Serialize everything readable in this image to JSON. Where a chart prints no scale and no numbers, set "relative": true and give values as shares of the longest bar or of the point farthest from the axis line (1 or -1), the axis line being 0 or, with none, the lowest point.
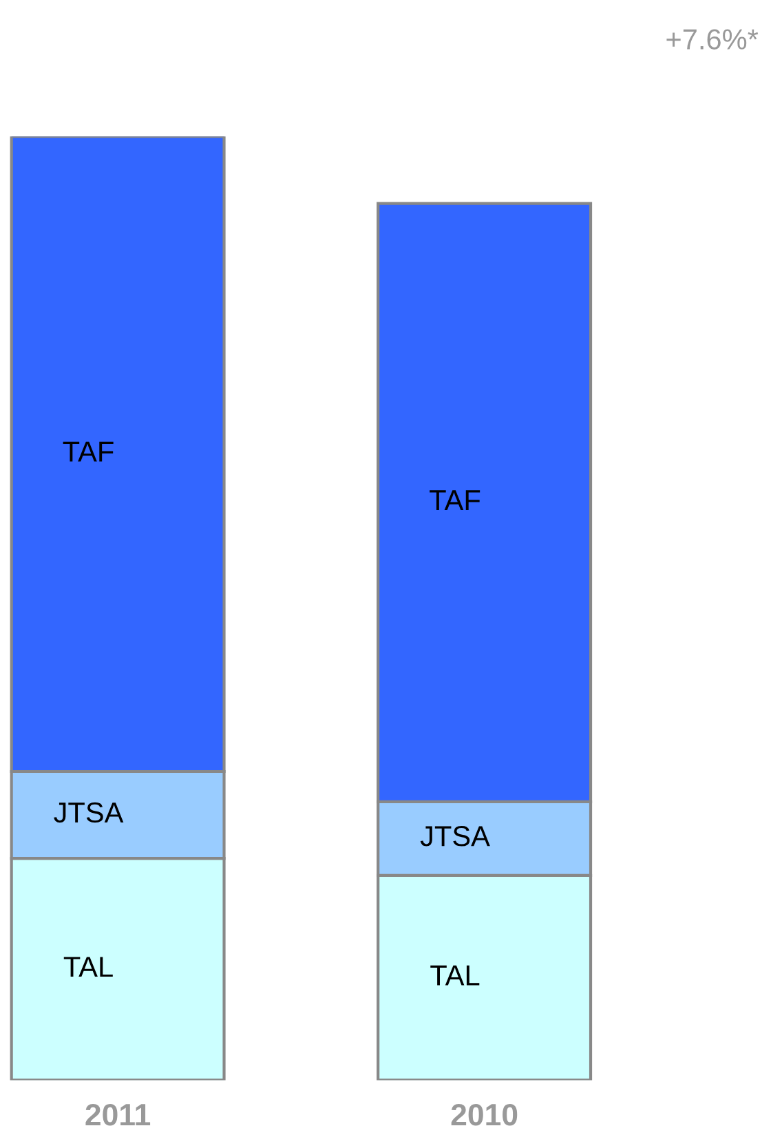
{
  "chart_data": {
    "type": "bar",
    "stacked": true,
    "relative": true,
    "categories": [
      "2011",
      "2010"
    ],
    "series": [
      {
        "name": "TAL",
        "color": "#ccffff",
        "values": [
          0.235,
          0.217
        ]
      },
      {
        "name": "JTSA",
        "color": "#99ccff",
        "values": [
          0.092,
          0.078
        ]
      },
      {
        "name": "TAF",
        "color": "#3366ff",
        "values": [
          0.673,
          0.634
        ]
      }
    ],
    "annotations": [
      "+7.6%*"
    ],
    "grid": false,
    "legend": false
  }
}
